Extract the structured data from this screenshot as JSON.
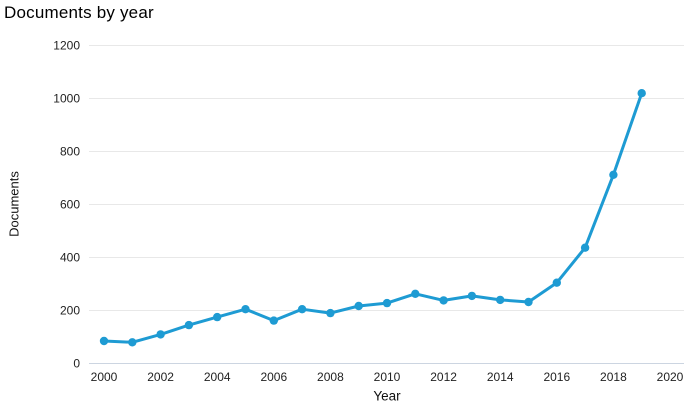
{
  "chart_data": {
    "type": "line",
    "title": "Documents by year",
    "xlabel": "Year",
    "ylabel": "Documents",
    "series_name": "Documents",
    "x": [
      2000,
      2001,
      2002,
      2003,
      2004,
      2005,
      2006,
      2007,
      2008,
      2009,
      2010,
      2011,
      2012,
      2013,
      2014,
      2015,
      2016,
      2017,
      2018,
      2019
    ],
    "values": [
      85,
      80,
      110,
      145,
      175,
      205,
      162,
      205,
      190,
      217,
      228,
      263,
      238,
      255,
      240,
      232,
      305,
      437,
      712,
      1020
    ],
    "x_ticks": [
      2000,
      2002,
      2004,
      2006,
      2008,
      2010,
      2012,
      2014,
      2016,
      2018,
      2020
    ],
    "y_ticks": [
      0,
      200,
      400,
      600,
      800,
      1000,
      1200
    ],
    "xlim": [
      2000,
      2020
    ],
    "ylim": [
      0,
      1200
    ],
    "grid": true,
    "legend": "none",
    "line_color": "#1e9bd3",
    "grid_color": "#e8e8e8",
    "axis_line_color": "#ccd5e1",
    "tick_label_color": "#222222",
    "title_color": "#000000"
  }
}
